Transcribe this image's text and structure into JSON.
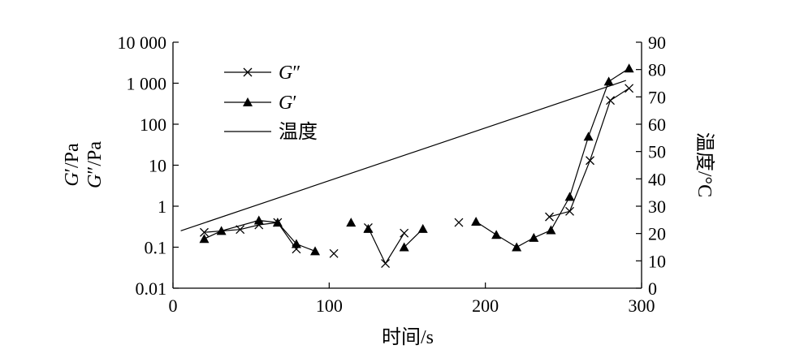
{
  "chart_data": {
    "type": "line",
    "xlabel": "时间/s",
    "ylabel_left_1": "G′/Pa",
    "ylabel_left_2": "G″/Pa",
    "ylabel_right": "温度/°C",
    "xlim": [
      0,
      300
    ],
    "x_ticks": [
      0,
      100,
      200,
      300
    ],
    "x_tick_labels": [
      "0",
      "100",
      "200",
      "300"
    ],
    "ylim_left": [
      0.01,
      10000
    ],
    "y_left_scale": "log",
    "y_left_ticks": [
      0.01,
      0.1,
      1,
      10,
      100,
      1000,
      10000
    ],
    "y_left_tick_labels": [
      "0.01",
      "0.1",
      "1",
      "10",
      "100",
      "1 000",
      "10 000"
    ],
    "ylim_right": [
      0,
      90
    ],
    "y_right_ticks": [
      0,
      10,
      20,
      30,
      40,
      50,
      60,
      70,
      80,
      90
    ],
    "y_right_tick_labels": [
      "0",
      "10",
      "20",
      "30",
      "40",
      "50",
      "60",
      "70",
      "80",
      "90"
    ],
    "legend_position": "top-left",
    "grid": false,
    "series": [
      {
        "name": "G″",
        "marker": "x",
        "axis": "left",
        "segments": [
          [
            [
              20,
              0.23
            ],
            [
              43,
              0.27
            ],
            [
              55,
              0.35
            ],
            [
              67,
              0.4
            ],
            [
              79,
              0.09
            ]
          ],
          [
            [
              103,
              0.07
            ]
          ],
          [
            [
              125,
              0.3
            ],
            [
              136,
              0.04
            ],
            [
              148,
              0.22
            ]
          ],
          [
            [
              183,
              0.4
            ]
          ],
          [
            [
              241,
              0.55
            ],
            [
              254,
              0.75
            ],
            [
              267,
              13
            ],
            [
              280,
              380
            ],
            [
              292,
              750
            ]
          ]
        ]
      },
      {
        "name": "G′",
        "marker": "triangle",
        "axis": "left",
        "segments": [
          [
            [
              20,
              0.16
            ],
            [
              31,
              0.25
            ],
            [
              55,
              0.45
            ],
            [
              67,
              0.4
            ],
            [
              79,
              0.12
            ],
            [
              91,
              0.08
            ]
          ],
          [
            [
              114,
              0.4
            ]
          ],
          [
            [
              125,
              0.28
            ]
          ],
          [
            [
              148,
              0.1
            ],
            [
              160,
              0.28
            ]
          ],
          [
            [
              194,
              0.42
            ],
            [
              207,
              0.2
            ],
            [
              220,
              0.1
            ],
            [
              231,
              0.17
            ],
            [
              242,
              0.26
            ],
            [
              254,
              1.7
            ],
            [
              266,
              50
            ],
            [
              279,
              1100
            ],
            [
              292,
              2300
            ]
          ]
        ]
      },
      {
        "name": "温度",
        "marker": "none",
        "axis": "right",
        "segments": [
          [
            [
              5,
              21
            ],
            [
              290,
              76
            ]
          ]
        ]
      }
    ]
  }
}
